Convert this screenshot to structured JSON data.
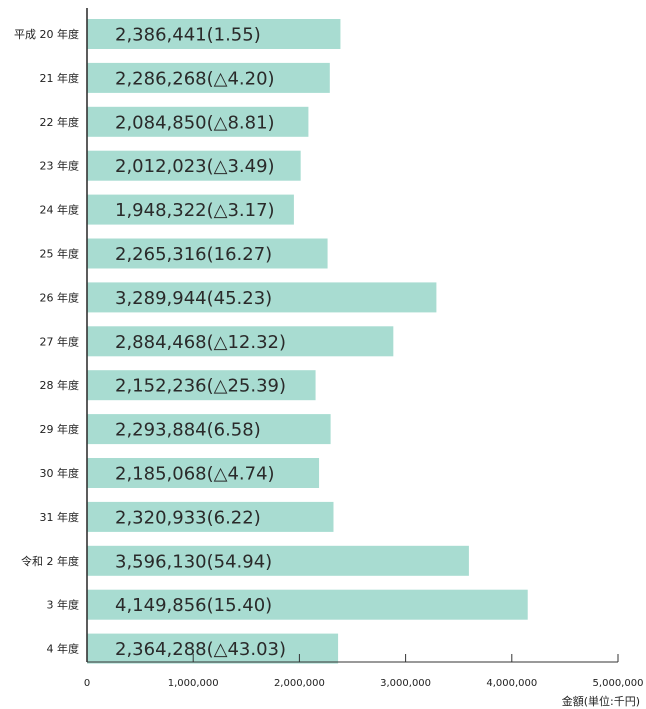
{
  "chart_data": {
    "type": "bar",
    "orientation": "horizontal",
    "categories": [
      "平成 20 年度",
      "21 年度",
      "22 年度",
      "23 年度",
      "24 年度",
      "25 年度",
      "26 年度",
      "27 年度",
      "28 年度",
      "29 年度",
      "30 年度",
      "31 年度",
      "令和 2 年度",
      "3 年度",
      "4 年度"
    ],
    "values": [
      2386441,
      2286268,
      2084850,
      2012023,
      1948322,
      2265316,
      3289944,
      2884468,
      2152236,
      2293884,
      2185068,
      2320933,
      3596130,
      4149856,
      2364288
    ],
    "data_labels": [
      "2,386,441(1.55)",
      "2,286,268(△4.20)",
      "2,084,850(△8.81)",
      "2,012,023(△3.49)",
      "1,948,322(△3.17)",
      "2,265,316(16.27)",
      "3,289,944(45.23)",
      "2,884,468(△12.32)",
      "2,152,236(△25.39)",
      "2,293,884(6.58)",
      "2,185,068(△4.74)",
      "2,320,933(6.22)",
      "3,596,130(54.94)",
      "4,149,856(15.40)",
      "2,364,288(△43.03)"
    ],
    "xlim": [
      0,
      5000000
    ],
    "xticks": [
      0,
      1000000,
      2000000,
      3000000,
      4000000,
      5000000
    ],
    "xtick_labels": [
      "0",
      "1,000,000",
      "2,000,000",
      "3,000,000",
      "4,000,000",
      "5,000,000"
    ],
    "xlabel": "金額(単位:千円)",
    "grid": false,
    "colors": {
      "bar": "#a8dcd1",
      "axis": "#333333",
      "text": "#222222"
    }
  }
}
